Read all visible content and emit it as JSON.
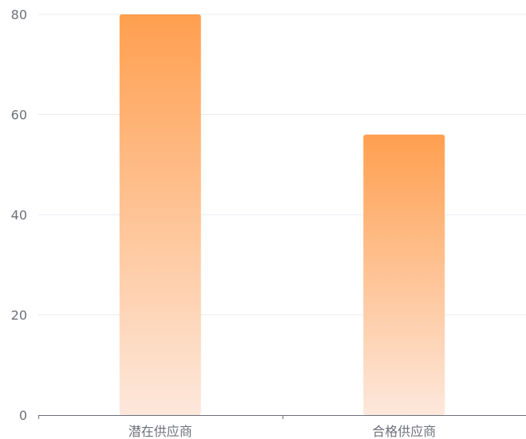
{
  "chart_data": {
    "type": "bar",
    "title": "",
    "xlabel": "",
    "ylabel": "",
    "categories": [
      "潜在供应商",
      "合格供应商"
    ],
    "series": [
      {
        "values": [
          80,
          56
        ]
      }
    ],
    "ylim": [
      0,
      80
    ],
    "yticks": [
      0,
      20,
      40,
      60,
      80
    ],
    "grid": true,
    "legend": "none",
    "colors": {
      "bar_top": "#ff9f4f",
      "bar_bottom": "#fde8dc",
      "grid": "#e8ebf0",
      "axis": "#6e7079",
      "tick_label": "#6e7079"
    }
  }
}
